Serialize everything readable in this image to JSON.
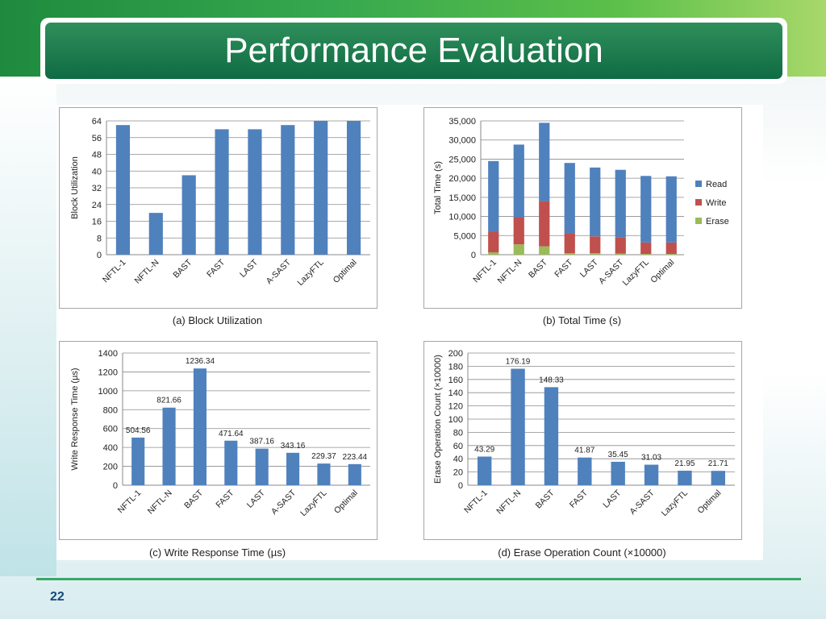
{
  "slide": {
    "title": "Performance Evaluation",
    "page_number": "22"
  },
  "colors": {
    "bar": "#4f81bd",
    "read": "#4f81bd",
    "write": "#c0504d",
    "erase": "#9bbb59",
    "title_bar": "#0f6b44"
  },
  "chart_data": [
    {
      "type": "bar",
      "caption": "(a) Block Utilization",
      "ylabel": "Block Utilization",
      "categories": [
        "NFTL-1",
        "NFTL-N",
        "BAST",
        "FAST",
        "LAST",
        "A-SAST",
        "LazyFTL",
        "Optimal"
      ],
      "values": [
        62,
        20,
        38,
        60,
        60,
        62,
        64,
        64
      ],
      "ylim": [
        0,
        64
      ],
      "yticks": [
        "0",
        "8",
        "16",
        "24",
        "32",
        "40",
        "48",
        "56",
        "64"
      ],
      "grid": true
    },
    {
      "type": "bar",
      "stacked": true,
      "caption": "(b) Total Time (s)",
      "ylabel": "Total Time (s)",
      "categories": [
        "NFTL-1",
        "NFTL-N",
        "BAST",
        "FAST",
        "LAST",
        "A-SAST",
        "LazyFTL",
        "Optimal"
      ],
      "series": [
        {
          "name": "Erase",
          "values": [
            600,
            2700,
            2200,
            400,
            400,
            300,
            200,
            200
          ]
        },
        {
          "name": "Write",
          "values": [
            5400,
            7100,
            11800,
            5200,
            4400,
            4200,
            3000,
            3000
          ]
        },
        {
          "name": "Read",
          "values": [
            18500,
            19000,
            20500,
            18400,
            18000,
            17700,
            17400,
            17300
          ]
        }
      ],
      "legend_items": [
        "Read",
        "Write",
        "Erase"
      ],
      "legend": "right",
      "ylim": [
        0,
        35000
      ],
      "yticks": [
        "0",
        "5,000",
        "10,000",
        "15,000",
        "20,000",
        "25,000",
        "30,000",
        "35,000"
      ],
      "grid": true
    },
    {
      "type": "bar",
      "caption": "(c) Write Response Time (µs)",
      "ylabel": "Write Response Time (µs)",
      "categories": [
        "NFTL-1",
        "NFTL-N",
        "BAST",
        "FAST",
        "LAST",
        "A-SAST",
        "LazyFTL",
        "Optimal"
      ],
      "values": [
        504.56,
        821.66,
        1236.34,
        471.64,
        387.16,
        343.16,
        229.37,
        223.44
      ],
      "data_labels": [
        "504.56",
        "821.66",
        "1236.34",
        "471.64",
        "387.16",
        "343.16",
        "229.37",
        "223.44"
      ],
      "ylim": [
        0,
        1400
      ],
      "yticks": [
        "0",
        "200",
        "400",
        "600",
        "800",
        "1000",
        "1200",
        "1400"
      ],
      "grid": true
    },
    {
      "type": "bar",
      "caption": "(d) Erase Operation Count (×10000)",
      "ylabel": "Erase Operation Count (×10000)",
      "categories": [
        "NFTL-1",
        "NFTL-N",
        "BAST",
        "FAST",
        "LAST",
        "A-SAST",
        "LazyFTL",
        "Optimal"
      ],
      "values": [
        43.29,
        176.19,
        148.33,
        41.87,
        35.45,
        31.03,
        21.95,
        21.71
      ],
      "data_labels": [
        "43.29",
        "176.19",
        "148.33",
        "41.87",
        "35.45",
        "31.03",
        "21.95",
        "21.71"
      ],
      "ylim": [
        0,
        200
      ],
      "yticks": [
        "0",
        "20",
        "40",
        "60",
        "80",
        "100",
        "120",
        "140",
        "160",
        "180",
        "200"
      ],
      "grid": true
    }
  ]
}
